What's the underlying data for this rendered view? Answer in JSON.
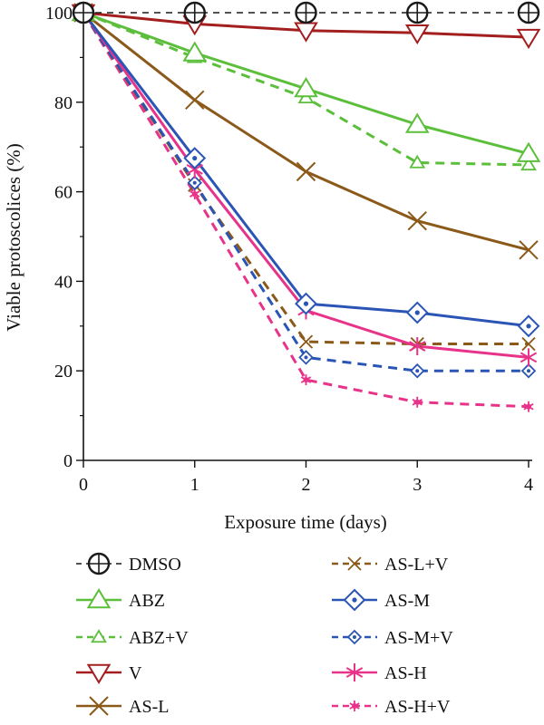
{
  "chart_data": {
    "type": "line",
    "xlabel": "Exposure time (days)",
    "ylabel": "Viable protoscolices (%)",
    "x": [
      0,
      1,
      2,
      3,
      4
    ],
    "xlim": [
      0,
      4
    ],
    "ylim": [
      0,
      100
    ],
    "x_ticks": [
      0,
      1,
      2,
      3,
      4
    ],
    "y_ticks": [
      0,
      20,
      40,
      60,
      80,
      100
    ],
    "grid": false,
    "legend_position": "bottom",
    "series": [
      {
        "name": "DMSO",
        "values": [
          100,
          100,
          100,
          100,
          100
        ],
        "color": "#1a1a1a",
        "dashed": true,
        "marker": "circle-cross"
      },
      {
        "name": "ABZ",
        "values": [
          100,
          91,
          83,
          75,
          68.5
        ],
        "color": "#5cbf3c",
        "dashed": false,
        "marker": "triangle-up"
      },
      {
        "name": "ABZ+V",
        "values": [
          100,
          90,
          81,
          66.5,
          66
        ],
        "color": "#5cbf3c",
        "dashed": true,
        "marker": "triangle-up-small"
      },
      {
        "name": "V",
        "values": [
          100,
          97.5,
          96,
          95.5,
          94.5
        ],
        "color": "#a31e1e",
        "dashed": false,
        "marker": "triangle-down"
      },
      {
        "name": "AS-L",
        "values": [
          100,
          80.5,
          64.5,
          53.5,
          47
        ],
        "color": "#8b5a1a",
        "dashed": false,
        "marker": "x"
      },
      {
        "name": "AS-L+V",
        "values": [
          100,
          61.5,
          26.5,
          26,
          26
        ],
        "color": "#8b5a1a",
        "dashed": true,
        "marker": "x-small"
      },
      {
        "name": "AS-M",
        "values": [
          100,
          67.5,
          35,
          33,
          30
        ],
        "color": "#2a55b5",
        "dashed": false,
        "marker": "diamond-dot"
      },
      {
        "name": "AS-M+V",
        "values": [
          100,
          62,
          23,
          20,
          20
        ],
        "color": "#2a55b5",
        "dashed": true,
        "marker": "diamond-dot-small"
      },
      {
        "name": "AS-H",
        "values": [
          100,
          65,
          33.5,
          25.5,
          23
        ],
        "color": "#e8338a",
        "dashed": false,
        "marker": "asterisk"
      },
      {
        "name": "AS-H+V",
        "values": [
          100,
          59.5,
          18,
          13,
          12
        ],
        "color": "#e8338a",
        "dashed": true,
        "marker": "asterisk-small"
      }
    ]
  }
}
